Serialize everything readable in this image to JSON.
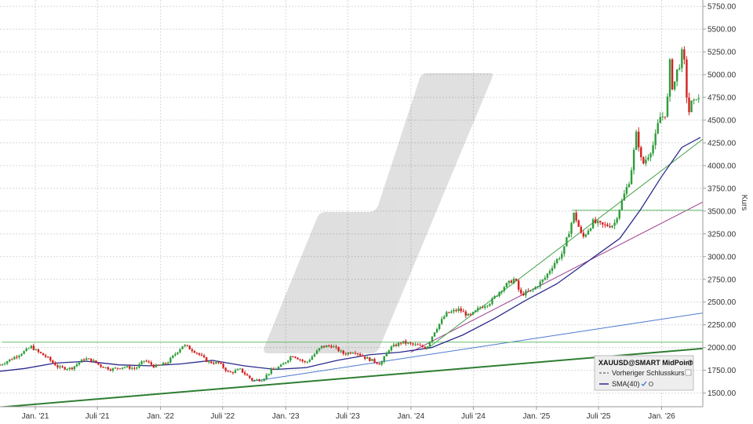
{
  "chart_data": {
    "type": "candlestick",
    "y_axis_label": "Kurs",
    "y_ticks": [
      1500,
      1750,
      2000,
      2250,
      2500,
      2750,
      3000,
      3250,
      3500,
      3750,
      4000,
      4250,
      4500,
      4750,
      5000,
      5250,
      5500,
      5750
    ],
    "y_tick_labels": [
      "1500.00",
      "1750.00",
      "2000.00",
      "2250.00",
      "2500.00",
      "2750.00",
      "3000.00",
      "3250.00",
      "3500.00",
      "3750.00",
      "4000.00",
      "4250.00",
      "4500.00",
      "4750.00",
      "5000.00",
      "5250.00",
      "5500.00",
      "5750.00"
    ],
    "ylim": [
      1350,
      5820
    ],
    "xlim": [
      "2020-09-20",
      "2026-05-01"
    ],
    "x_ticks": [
      "2021-01-01",
      "2021-07-01",
      "2022-01-01",
      "2022-07-01",
      "2023-01-01",
      "2023-07-01",
      "2024-01-01",
      "2024-07-01",
      "2025-01-01",
      "2025-07-01",
      "2026-01-01"
    ],
    "x_tick_labels": [
      "Jan. '21",
      "Juli '21",
      "Jan. '22",
      "Juli '22",
      "Jan. '23",
      "Juli '23",
      "Jan. '24",
      "Juli '24",
      "Jan. '25",
      "Juli '25",
      "Jan. '26"
    ],
    "grid": true,
    "legend_position": "bottom-right",
    "price_path": [
      [
        "2020-09-20",
        1810
      ],
      [
        "2020-10-25",
        1880
      ],
      [
        "2020-12-01",
        1960
      ],
      [
        "2020-12-20",
        2010
      ],
      [
        "2021-01-05",
        1960
      ],
      [
        "2021-02-01",
        1900
      ],
      [
        "2021-03-10",
        1780
      ],
      [
        "2021-04-15",
        1770
      ],
      [
        "2021-05-25",
        1880
      ],
      [
        "2021-06-15",
        1860
      ],
      [
        "2021-07-10",
        1800
      ],
      [
        "2021-08-10",
        1760
      ],
      [
        "2021-09-15",
        1790
      ],
      [
        "2021-10-20",
        1770
      ],
      [
        "2021-11-15",
        1860
      ],
      [
        "2021-12-15",
        1790
      ],
      [
        "2022-01-20",
        1830
      ],
      [
        "2022-03-08",
        2030
      ],
      [
        "2022-04-15",
        1950
      ],
      [
        "2022-05-20",
        1840
      ],
      [
        "2022-06-20",
        1830
      ],
      [
        "2022-07-20",
        1720
      ],
      [
        "2022-08-20",
        1760
      ],
      [
        "2022-09-26",
        1640
      ],
      [
        "2022-10-25",
        1650
      ],
      [
        "2022-11-20",
        1750
      ],
      [
        "2022-12-20",
        1800
      ],
      [
        "2023-01-20",
        1920
      ],
      [
        "2023-03-01",
        1830
      ],
      [
        "2023-04-15",
        2010
      ],
      [
        "2023-05-15",
        2020
      ],
      [
        "2023-06-20",
        1930
      ],
      [
        "2023-07-20",
        1960
      ],
      [
        "2023-08-20",
        1890
      ],
      [
        "2023-10-05",
        1820
      ],
      [
        "2023-10-30",
        1990
      ],
      [
        "2023-12-05",
        2060
      ],
      [
        "2024-01-10",
        2030
      ],
      [
        "2024-02-15",
        2000
      ],
      [
        "2024-03-10",
        2180
      ],
      [
        "2024-04-12",
        2370
      ],
      [
        "2024-05-20",
        2420
      ],
      [
        "2024-06-20",
        2340
      ],
      [
        "2024-07-20",
        2440
      ],
      [
        "2024-08-20",
        2500
      ],
      [
        "2024-09-25",
        2660
      ],
      [
        "2024-10-30",
        2760
      ],
      [
        "2024-11-15",
        2580
      ],
      [
        "2024-12-20",
        2630
      ],
      [
        "2025-01-25",
        2760
      ],
      [
        "2025-02-20",
        2920
      ],
      [
        "2025-03-20",
        3050
      ],
      [
        "2025-04-21",
        3480
      ],
      [
        "2025-05-15",
        3200
      ],
      [
        "2025-06-15",
        3380
      ],
      [
        "2025-07-15",
        3340
      ],
      [
        "2025-08-15",
        3350
      ],
      [
        "2025-09-10",
        3640
      ],
      [
        "2025-10-01",
        3860
      ],
      [
        "2025-10-20",
        4370
      ],
      [
        "2025-11-05",
        4000
      ],
      [
        "2025-11-25",
        4130
      ],
      [
        "2025-12-10",
        4250
      ],
      [
        "2025-12-26",
        4530
      ],
      [
        "2026-01-10",
        4550
      ],
      [
        "2026-01-20",
        4780
      ],
      [
        "2026-01-29",
        5400
      ],
      [
        "2026-02-02",
        4700
      ],
      [
        "2026-02-10",
        5000
      ],
      [
        "2026-02-20",
        5080
      ],
      [
        "2026-03-05",
        5300
      ],
      [
        "2026-03-12",
        4900
      ],
      [
        "2026-03-20",
        4550
      ],
      [
        "2026-03-27",
        4700
      ],
      [
        "2026-04-03",
        4650
      ],
      [
        "2026-04-10",
        4780
      ],
      [
        "2026-04-17",
        4720
      ],
      [
        "2026-04-24",
        4710
      ]
    ],
    "series": [
      {
        "name": "Vorheriger Schlusskurs",
        "color": "#444444",
        "dash": true,
        "values": []
      },
      {
        "name": "SMA(40)",
        "color": "#2a2a8c",
        "values": [
          [
            "2020-09-20",
            1740
          ],
          [
            "2020-12-01",
            1770
          ],
          [
            "2021-03-01",
            1830
          ],
          [
            "2021-06-01",
            1850
          ],
          [
            "2021-09-01",
            1810
          ],
          [
            "2021-12-01",
            1800
          ],
          [
            "2022-03-01",
            1820
          ],
          [
            "2022-06-01",
            1860
          ],
          [
            "2022-09-01",
            1800
          ],
          [
            "2022-12-01",
            1760
          ],
          [
            "2023-03-01",
            1780
          ],
          [
            "2023-06-01",
            1860
          ],
          [
            "2023-09-01",
            1920
          ],
          [
            "2023-12-01",
            1950
          ],
          [
            "2024-03-01",
            2000
          ],
          [
            "2024-06-01",
            2140
          ],
          [
            "2024-09-01",
            2320
          ],
          [
            "2024-12-01",
            2520
          ],
          [
            "2025-03-01",
            2700
          ],
          [
            "2025-06-01",
            2950
          ],
          [
            "2025-09-01",
            3200
          ],
          [
            "2025-11-01",
            3520
          ],
          [
            "2026-01-01",
            3880
          ],
          [
            "2026-03-01",
            4200
          ],
          [
            "2026-04-24",
            4310
          ]
        ]
      }
    ],
    "trend_lines": [
      {
        "color": "#2e7d32",
        "width": 2,
        "points": [
          [
            "2020-09-20",
            1345
          ],
          [
            "2026-05-01",
            1990
          ]
        ]
      },
      {
        "color": "#4a78d0",
        "width": 1,
        "points": [
          [
            "2022-09-26",
            1630
          ],
          [
            "2026-05-01",
            2380
          ]
        ]
      },
      {
        "color": "#9c3d8c",
        "width": 1,
        "points": [
          [
            "2024-01-01",
            1950
          ],
          [
            "2026-05-01",
            3600
          ]
        ]
      },
      {
        "color": "#43a047",
        "width": 1,
        "points": [
          [
            "2024-02-15",
            1980
          ],
          [
            "2026-05-01",
            4290
          ]
        ]
      },
      {
        "color": "#66bb6a",
        "width": 1,
        "points": [
          [
            "2020-09-25",
            2060
          ],
          [
            "2026-05-01",
            2060
          ]
        ]
      },
      {
        "color": "#66bb6a",
        "width": 1,
        "points": [
          [
            "2025-04-15",
            3510
          ],
          [
            "2026-05-01",
            3510
          ]
        ]
      }
    ],
    "legend": {
      "title": "XAUUSD@SMART MidPoint"
    },
    "colors": {
      "up": "#2e9d3a",
      "down": "#d32020",
      "grid": "#d8d8d8"
    }
  }
}
